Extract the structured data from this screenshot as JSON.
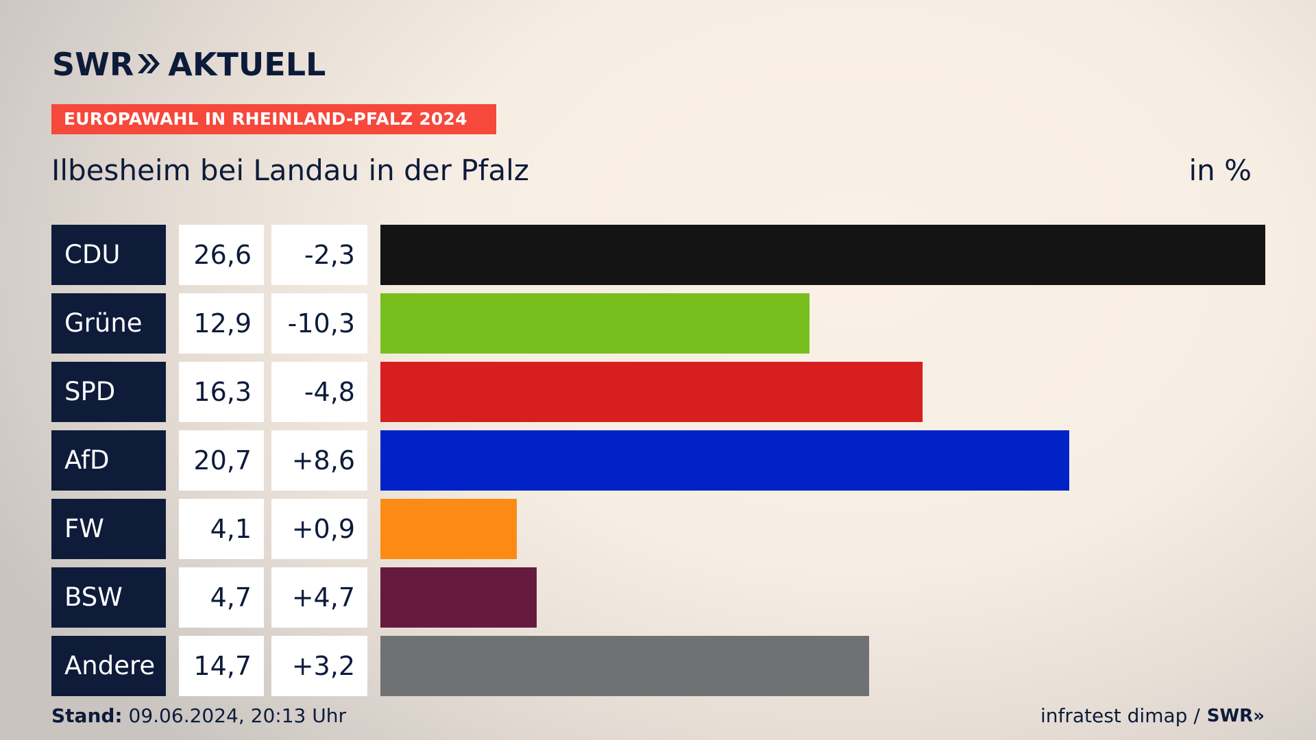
{
  "brand": {
    "swr": "SWR",
    "chevrons": "»",
    "section": "AKTUELL"
  },
  "tag": "EUROPAWAHL IN RHEINLAND-PFALZ 2024",
  "subtitle": "Ilbesheim bei Landau in der Pfalz",
  "unit": "in %",
  "footer": {
    "stand_label": "Stand:",
    "stand_value": "09.06.2024, 20:13 Uhr",
    "source": "infratest dimap /",
    "source_brand": "SWR»"
  },
  "chart_data": {
    "type": "bar",
    "orientation": "horizontal",
    "title": "Ilbesheim bei Landau in der Pfalz",
    "unit": "in %",
    "categories": [
      "CDU",
      "Grüne",
      "SPD",
      "AfD",
      "FW",
      "BSW",
      "Andere"
    ],
    "values": [
      26.6,
      12.9,
      16.3,
      20.7,
      4.1,
      4.7,
      14.7
    ],
    "value_labels": [
      "26,6",
      "12,9",
      "16,3",
      "20,7",
      "4,1",
      "4,7",
      "14,7"
    ],
    "diff_labels": [
      "-2,3",
      "-10,3",
      "-4,8",
      "+8,6",
      "+0,9",
      "+4,7",
      "+3,2"
    ],
    "colors": [
      "#141414",
      "#78be1d",
      "#d71f1f",
      "#0022c7",
      "#fc8b16",
      "#661a3e",
      "#707173"
    ],
    "xlim": [
      0,
      26.6
    ]
  }
}
